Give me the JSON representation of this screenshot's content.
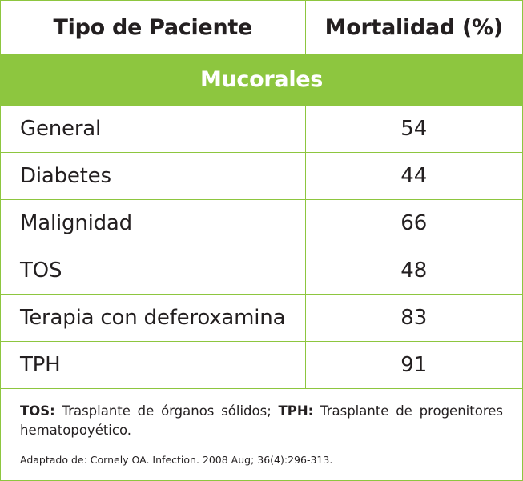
{
  "table": {
    "headers": [
      "Tipo de Paciente",
      "Mortalidad (%)"
    ],
    "section_title": "Mucorales",
    "rows": [
      {
        "label": "General",
        "value": "54"
      },
      {
        "label": "Diabetes",
        "value": "44"
      },
      {
        "label": "Malignidad",
        "value": "66"
      },
      {
        "label": "TOS",
        "value": "48"
      },
      {
        "label": "Terapia con deferoxamina",
        "value": "83"
      },
      {
        "label": "TPH",
        "value": "91"
      }
    ]
  },
  "footnote": {
    "abbr1": "TOS:",
    "def1": " Trasplante de órganos sólidos; ",
    "abbr2": "TPH:",
    "def2": " Trasplante de progenitores hematopoyético."
  },
  "source": "Adaptado de: Cornely OA. Infection. 2008 Aug; 36(4):296-313."
}
